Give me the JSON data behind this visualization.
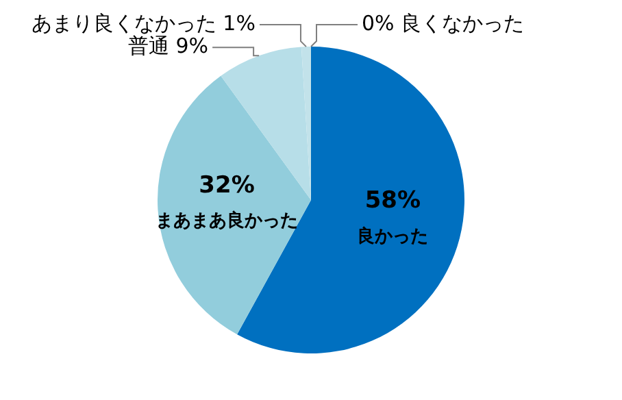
{
  "chart_data": {
    "type": "pie",
    "categories": [
      "良くなかった",
      "良かった",
      "まあまあ良かった",
      "普通",
      "あまり良くなかった"
    ],
    "values": [
      0,
      58,
      32,
      9,
      1
    ],
    "colors": [
      "#00b0f0",
      "#0070c0",
      "#92cddc",
      "#b7dee8",
      "#c2e2ea"
    ],
    "value_labels": [
      "0%",
      "58%",
      "32%",
      "9%",
      "1%"
    ]
  }
}
